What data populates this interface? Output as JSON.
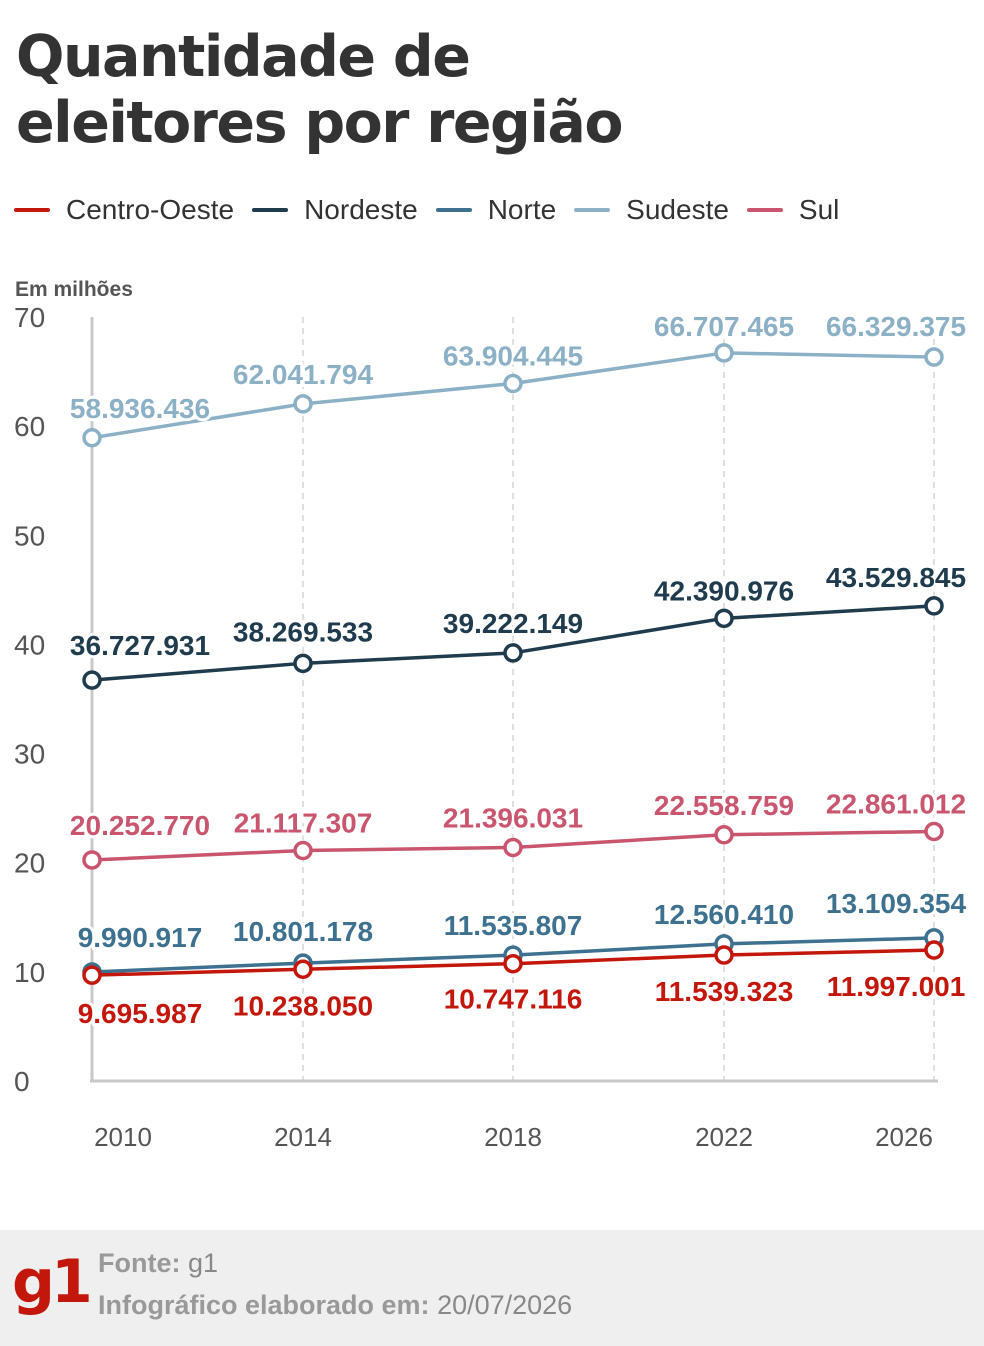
{
  "title_line1": "Quantidade de",
  "title_line2": "eleitores por região",
  "legend": [
    {
      "name": "Centro-Oeste",
      "color": "#c4170c"
    },
    {
      "name": "Nordeste",
      "color": "#1f3b4d"
    },
    {
      "name": "Norte",
      "color": "#3d718f"
    },
    {
      "name": "Sudeste",
      "color": "#8cb1c6"
    },
    {
      "name": "Sul",
      "color": "#c9566e"
    }
  ],
  "chart_data": {
    "type": "line",
    "title": "Quantidade de eleitores por região",
    "ylabel": "Em milhões",
    "x": [
      "2010",
      "2014",
      "2018",
      "2022",
      "2026"
    ],
    "y_ticks": [
      "0",
      "10",
      "20",
      "30",
      "40",
      "50",
      "60",
      "70"
    ],
    "ylim": [
      0,
      70
    ],
    "grid": "vertical dashed",
    "legend_position": "top",
    "series": [
      {
        "name": "Sudeste",
        "color": "#8cb1c6",
        "values": [
          58.936436,
          62.041794,
          63.904445,
          66.707465,
          66.329375
        ],
        "labels": [
          "58.936.436",
          "62.041.794",
          "63.904.445",
          "66.707.465",
          "66.329.375"
        ]
      },
      {
        "name": "Nordeste",
        "color": "#1f3b4d",
        "values": [
          36.727931,
          38.269533,
          39.222149,
          42.390976,
          43.529845
        ],
        "labels": [
          "36.727.931",
          "38.269.533",
          "39.222.149",
          "42.390.976",
          "43.529.845"
        ]
      },
      {
        "name": "Sul",
        "color": "#c9566e",
        "values": [
          20.25277,
          21.117307,
          21.396031,
          22.558759,
          22.861012
        ],
        "labels": [
          "20.252.770",
          "21.117.307",
          "21.396.031",
          "22.558.759",
          "22.861.012"
        ]
      },
      {
        "name": "Norte",
        "color": "#3d718f",
        "values": [
          9.990917,
          10.801178,
          11.535807,
          12.56041,
          13.109354
        ],
        "labels": [
          "9.990.917",
          "10.801.178",
          "11.535.807",
          "12.560.410",
          "13.109.354"
        ]
      },
      {
        "name": "Centro-Oeste",
        "color": "#c4170c",
        "values": [
          9.695987,
          10.23805,
          10.747116,
          11.539323,
          11.997001
        ],
        "labels": [
          "9.695.987",
          "10.238.050",
          "10.747.116",
          "11.539.323",
          "11.997.001"
        ]
      }
    ]
  },
  "footer": {
    "logo": "g1",
    "source_label": "Fonte:",
    "source_value": "g1",
    "date_label": "Infográfico elaborado em:",
    "date_value": "20/07/2026"
  }
}
